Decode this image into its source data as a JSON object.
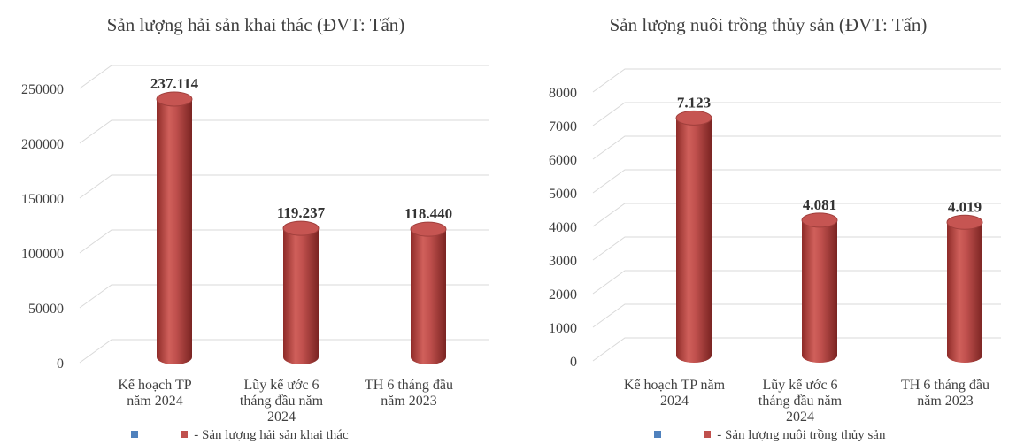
{
  "chart_data": [
    {
      "type": "bar",
      "title": "Sản lượng hải sản khai thác (ĐVT: Tấn)",
      "categories": [
        "Kế hoạch TP năm 2024",
        "Lũy kế ước 6 tháng đầu năm 2024",
        "TH 6 tháng đầu năm 2023"
      ],
      "category_lines": [
        [
          "Kế hoạch TP",
          "năm 2024"
        ],
        [
          "Lũy kế ước 6",
          "tháng đầu năm",
          "2024"
        ],
        [
          "TH 6 tháng đầu",
          "năm 2023"
        ]
      ],
      "series": [
        {
          "name": "- Sản lượng hải sản khai thác",
          "values": [
            237114,
            119237,
            118440
          ],
          "color": "#c0504d"
        }
      ],
      "data_labels": [
        "237.114",
        "119.237",
        "118.440"
      ],
      "y_ticks": [
        0,
        50000,
        100000,
        150000,
        200000,
        250000
      ],
      "ylim": [
        0,
        250000
      ],
      "legend": {
        "position": "bottom",
        "items": [
          {
            "label": "",
            "color": "#4f81bd"
          },
          {
            "label": "- Sản lượng hải sản khai thác",
            "color": "#c0504d"
          }
        ]
      },
      "grid": true,
      "style": "3d-cylinder"
    },
    {
      "type": "bar",
      "title": "Sản lượng nuôi trồng thủy sản (ĐVT: Tấn)",
      "categories": [
        "Kế hoạch TP năm 2024",
        "Lũy kế ước 6 tháng đầu năm 2024",
        "TH 6 tháng đầu năm 2023"
      ],
      "category_lines": [
        [
          "Kế hoạch TP năm",
          "2024"
        ],
        [
          "Lũy kế ước 6",
          "tháng đầu năm",
          "2024"
        ],
        [
          "TH 6 tháng đầu",
          "năm 2023"
        ]
      ],
      "series": [
        {
          "name": "- Sản lượng nuôi trồng thủy sản",
          "values": [
            7123,
            4081,
            4019
          ],
          "color": "#c0504d"
        }
      ],
      "data_labels": [
        "7.123",
        "4.081",
        "4.019"
      ],
      "y_ticks": [
        0,
        1000,
        2000,
        3000,
        4000,
        5000,
        6000,
        7000,
        8000
      ],
      "ylim": [
        0,
        8000
      ],
      "legend": {
        "position": "bottom",
        "items": [
          {
            "label": "",
            "color": "#4f81bd"
          },
          {
            "label": "- Sản lượng nuôi trồng thủy sản",
            "color": "#c0504d"
          }
        ]
      },
      "grid": true,
      "style": "3d-cylinder"
    }
  ]
}
